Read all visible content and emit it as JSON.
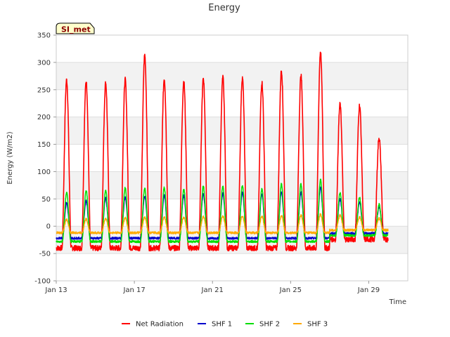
{
  "chart_data": {
    "type": "line",
    "title": "Energy",
    "xlabel": "Time",
    "ylabel": "Energy (W/m2)",
    "site_label": "SI_met",
    "xlim": [
      "2021-01-13",
      "2021-01-31"
    ],
    "ylim": [
      -100,
      350
    ],
    "x_ticks": [
      {
        "date": "2021-01-13",
        "label": "Jan 13"
      },
      {
        "date": "2021-01-17",
        "label": "Jan 17"
      },
      {
        "date": "2021-01-21",
        "label": "Jan 21"
      },
      {
        "date": "2021-01-25",
        "label": "Jan 25"
      },
      {
        "date": "2021-01-29",
        "label": "Jan 29"
      }
    ],
    "y_ticks": [
      -100,
      -50,
      0,
      50,
      100,
      150,
      200,
      250,
      300,
      350
    ],
    "grid": true,
    "background_bands": true,
    "legend_position": "bottom",
    "series_info": [
      {
        "name": "Net Radiation",
        "color": "#ff0000",
        "night": -40
      },
      {
        "name": "SHF 1",
        "color": "#0000cc",
        "night": -22
      },
      {
        "name": "SHF 2",
        "color": "#00dd00",
        "night": -28
      },
      {
        "name": "SHF 3",
        "color": "#ffaa00",
        "night": -12
      }
    ],
    "daily": [
      {
        "date": "2021-01-13",
        "peaks": [
          268,
          43,
          62,
          12
        ]
      },
      {
        "date": "2021-01-14",
        "peaks": [
          265,
          47,
          66,
          13
        ]
      },
      {
        "date": "2021-01-15",
        "peaks": [
          262,
          52,
          65,
          14
        ]
      },
      {
        "date": "2021-01-16",
        "peaks": [
          268,
          53,
          70,
          15
        ]
      },
      {
        "date": "2021-01-17",
        "peaks": [
          314,
          55,
          70,
          16
        ]
      },
      {
        "date": "2021-01-18",
        "peaks": [
          270,
          56,
          71,
          17
        ]
      },
      {
        "date": "2021-01-19",
        "peaks": [
          265,
          56,
          68,
          16
        ]
      },
      {
        "date": "2021-01-20",
        "peaks": [
          271,
          60,
          73,
          18
        ]
      },
      {
        "date": "2021-01-21",
        "peaks": [
          272,
          60,
          73,
          18
        ]
      },
      {
        "date": "2021-01-22",
        "peaks": [
          272,
          62,
          75,
          19
        ]
      },
      {
        "date": "2021-01-23",
        "peaks": [
          263,
          58,
          68,
          18
        ]
      },
      {
        "date": "2021-01-24",
        "peaks": [
          285,
          63,
          77,
          19
        ]
      },
      {
        "date": "2021-01-25",
        "peaks": [
          275,
          62,
          77,
          20
        ]
      },
      {
        "date": "2021-01-26",
        "peaks": [
          320,
          72,
          85,
          22
        ]
      },
      {
        "date": "2021-01-27",
        "peaks": [
          223,
          50,
          62,
          20
        ]
      },
      {
        "date": "2021-01-28",
        "peaks": [
          221,
          44,
          53,
          17
        ]
      },
      {
        "date": "2021-01-29",
        "peaks": [
          162,
          35,
          40,
          14
        ]
      }
    ]
  }
}
